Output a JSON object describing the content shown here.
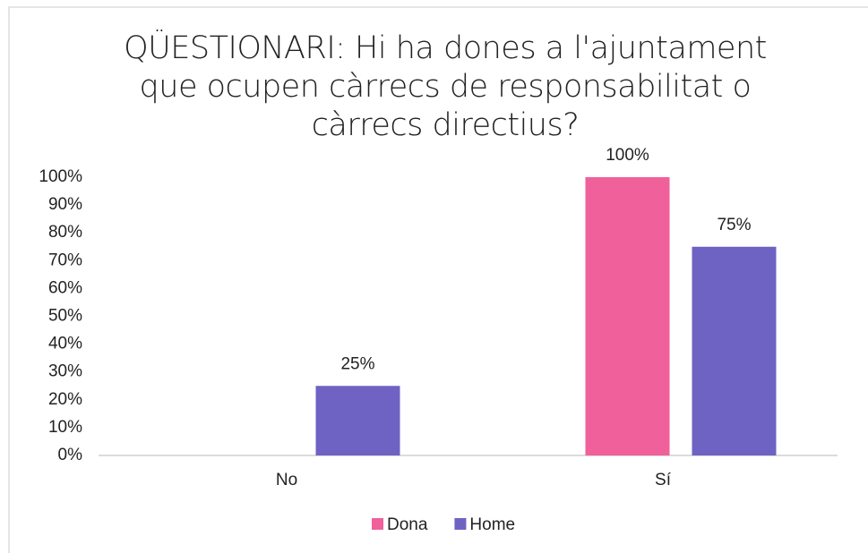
{
  "chart_data": {
    "type": "bar",
    "title": "QÜESTIONARI: Hi ha dones a l'ajuntament que ocupen càrrecs de responsabilitat o càrrecs directius?",
    "categories": [
      "No",
      "Sí"
    ],
    "series": [
      {
        "name": "Dona",
        "color": "#f0609a",
        "values": [
          0,
          100
        ],
        "value_labels": [
          null,
          "100%"
        ]
      },
      {
        "name": "Home",
        "color": "#6e63c3",
        "values": [
          25,
          75
        ],
        "value_labels": [
          "25%",
          "75%"
        ]
      }
    ],
    "ylim": [
      0,
      100
    ],
    "yticks": [
      {
        "value": 0,
        "label": "0%"
      },
      {
        "value": 10,
        "label": "10%"
      },
      {
        "value": 20,
        "label": "20%"
      },
      {
        "value": 30,
        "label": "30%"
      },
      {
        "value": 40,
        "label": "40%"
      },
      {
        "value": 50,
        "label": "50%"
      },
      {
        "value": 60,
        "label": "60%"
      },
      {
        "value": 70,
        "label": "70%"
      },
      {
        "value": 80,
        "label": "80%"
      },
      {
        "value": 90,
        "label": "90%"
      },
      {
        "value": 100,
        "label": "100%"
      }
    ],
    "grid": false,
    "legend": "bottom"
  }
}
